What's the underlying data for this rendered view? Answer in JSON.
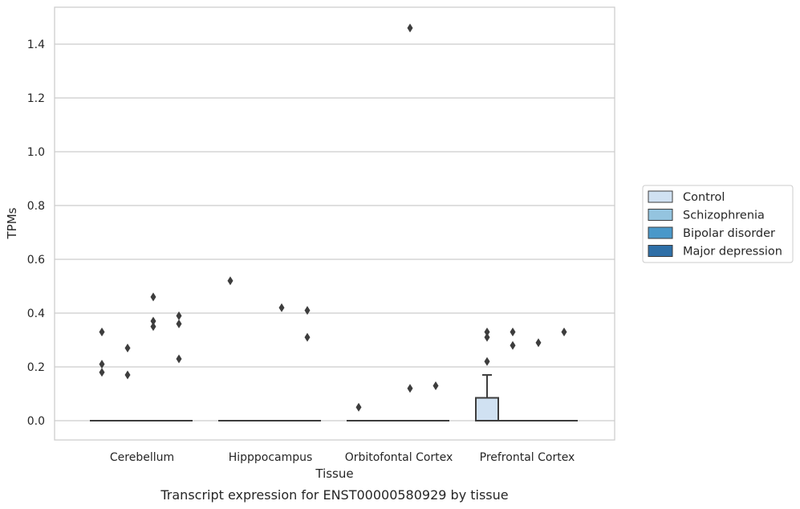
{
  "chart_data": {
    "type": "box",
    "caption": "Transcript expression for ENST00000580929 by tissue",
    "xlabel": "Tissue",
    "ylabel": "TPMs",
    "ylim": [
      -0.07,
      1.55
    ],
    "yticks": [
      "0.0",
      "0.2",
      "0.4",
      "0.6",
      "0.8",
      "1.0",
      "1.2",
      "1.4"
    ],
    "grid": "horizontal",
    "legend_position": "right",
    "categories": [
      "Cerebellum",
      "Hipppocampus",
      "Orbitofontal Cortex",
      "Prefrontal Cortex"
    ],
    "series": [
      {
        "name": "Control",
        "color": "#d0e1f2",
        "boxes": [
          {
            "q1": 0,
            "median": 0,
            "q3": 0,
            "whisker_low": 0,
            "whisker_high": 0,
            "outliers": [
              0.33,
              0.18,
              0.21
            ]
          },
          {
            "q1": 0,
            "median": 0,
            "q3": 0,
            "whisker_low": 0,
            "whisker_high": 0,
            "outliers": [
              0.52
            ]
          },
          {
            "q1": 0,
            "median": 0,
            "q3": 0,
            "whisker_low": 0,
            "whisker_high": 0,
            "outliers": [
              0.05
            ]
          },
          {
            "q1": 0,
            "median": 0,
            "q3": 0.085,
            "whisker_low": 0,
            "whisker_high": 0.17,
            "outliers": [
              0.33,
              0.31,
              0.22
            ]
          }
        ]
      },
      {
        "name": "Schizophrenia",
        "color": "#94c4df",
        "boxes": [
          {
            "q1": 0,
            "median": 0,
            "q3": 0,
            "whisker_low": 0,
            "whisker_high": 0,
            "outliers": [
              0.27,
              0.17
            ]
          },
          {
            "q1": 0,
            "median": 0,
            "q3": 0,
            "whisker_low": 0,
            "whisker_high": 0,
            "outliers": []
          },
          {
            "q1": 0,
            "median": 0,
            "q3": 0,
            "whisker_low": 0,
            "whisker_high": 0,
            "outliers": []
          },
          {
            "q1": 0,
            "median": 0,
            "q3": 0,
            "whisker_low": 0,
            "whisker_high": 0,
            "outliers": [
              0.33,
              0.28
            ]
          }
        ]
      },
      {
        "name": "Bipolar disorder",
        "color": "#4a98c9",
        "boxes": [
          {
            "q1": 0,
            "median": 0,
            "q3": 0,
            "whisker_low": 0,
            "whisker_high": 0,
            "outliers": [
              0.46,
              0.37,
              0.35
            ]
          },
          {
            "q1": 0,
            "median": 0,
            "q3": 0,
            "whisker_low": 0,
            "whisker_high": 0,
            "outliers": [
              0.42
            ]
          },
          {
            "q1": 0,
            "median": 0,
            "q3": 0,
            "whisker_low": 0,
            "whisker_high": 0,
            "outliers": [
              1.46,
              0.12
            ]
          },
          {
            "q1": 0,
            "median": 0,
            "q3": 0,
            "whisker_low": 0,
            "whisker_high": 0,
            "outliers": [
              0.29
            ]
          }
        ]
      },
      {
        "name": "Major depression",
        "color": "#2e6fa7",
        "boxes": [
          {
            "q1": 0,
            "median": 0,
            "q3": 0,
            "whisker_low": 0,
            "whisker_high": 0,
            "outliers": [
              0.39,
              0.36,
              0.23
            ]
          },
          {
            "q1": 0,
            "median": 0,
            "q3": 0,
            "whisker_low": 0,
            "whisker_high": 0,
            "outliers": [
              0.41,
              0.31
            ]
          },
          {
            "q1": 0,
            "median": 0,
            "q3": 0,
            "whisker_low": 0,
            "whisker_high": 0,
            "outliers": [
              0.13
            ]
          },
          {
            "q1": 0,
            "median": 0,
            "q3": 0,
            "whisker_low": 0,
            "whisker_high": 0,
            "outliers": [
              0.33
            ]
          }
        ]
      }
    ]
  }
}
